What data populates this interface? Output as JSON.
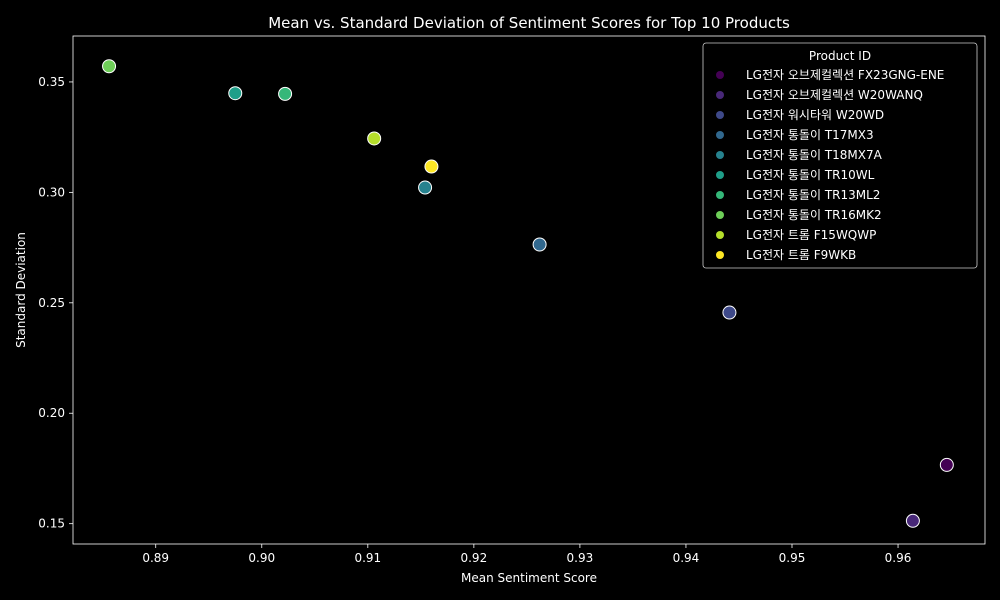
{
  "chart_data": {
    "type": "scatter",
    "title": "Mean vs. Standard Deviation of Sentiment Scores for Top 10 Products",
    "xlabel": "Mean Sentiment Score",
    "ylabel": "Standard Deviation",
    "xlim": [
      0.8822,
      0.9682
    ],
    "ylim": [
      0.1408,
      0.3708
    ],
    "xticks": [
      0.89,
      0.9,
      0.91,
      0.92,
      0.93,
      0.94,
      0.95,
      0.96
    ],
    "xtick_labels": [
      "0.89",
      "0.90",
      "0.91",
      "0.92",
      "0.93",
      "0.94",
      "0.95",
      "0.96"
    ],
    "yticks": [
      0.15,
      0.2,
      0.25,
      0.3,
      0.35
    ],
    "ytick_labels": [
      "0.15",
      "0.20",
      "0.25",
      "0.30",
      "0.35"
    ],
    "grid": false,
    "legend": {
      "title": "Product ID",
      "placement": "top-right"
    },
    "series": [
      {
        "name": "LG전자 오브제컬렉션 FX23GNG-ENE",
        "color": "#440154",
        "x": [
          0.9646
        ],
        "y": [
          0.1766
        ]
      },
      {
        "name": "LG전자 오브제컬렉션 W20WANQ",
        "color": "#482878",
        "x": [
          0.9614
        ],
        "y": [
          0.1513
        ]
      },
      {
        "name": "LG전자 워시타워 W20WD",
        "color": "#3e4989",
        "x": [
          0.9441
        ],
        "y": [
          0.2456
        ]
      },
      {
        "name": "LG전자 통돌이 T17MX3",
        "color": "#31688e",
        "x": [
          0.9262
        ],
        "y": [
          0.2764
        ]
      },
      {
        "name": "LG전자 통돌이 T18MX7A",
        "color": "#26828e",
        "x": [
          0.9154
        ],
        "y": [
          0.3022
        ]
      },
      {
        "name": "LG전자 통돌이 TR10WL",
        "color": "#1f9e89",
        "x": [
          0.8975
        ],
        "y": [
          0.3449
        ]
      },
      {
        "name": "LG전자 통돌이 TR13ML2",
        "color": "#35b779",
        "x": [
          0.9022
        ],
        "y": [
          0.3446
        ]
      },
      {
        "name": "LG전자 통돌이 TR16MK2",
        "color": "#6ece58",
        "x": [
          0.8856
        ],
        "y": [
          0.3571
        ]
      },
      {
        "name": "LG전자 트롬 F15WQWP",
        "color": "#b5de2b",
        "x": [
          0.9106
        ],
        "y": [
          0.3244
        ]
      },
      {
        "name": "LG전자 트롬 F9WKB",
        "color": "#fde725",
        "x": [
          0.916
        ],
        "y": [
          0.3117
        ]
      }
    ]
  }
}
